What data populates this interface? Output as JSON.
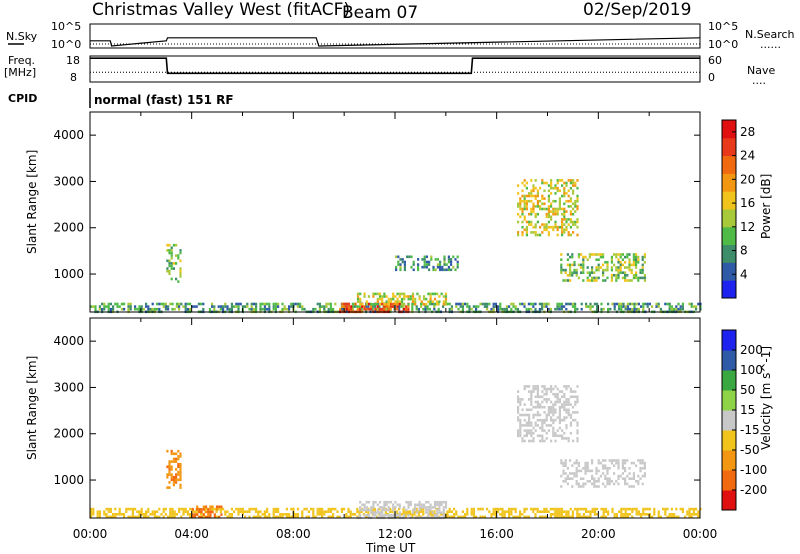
{
  "header": {
    "radar": "Christmas Valley West (fitACF)",
    "beam": "Beam 07",
    "date": "02/Sep/2019"
  },
  "noise_panel": {
    "left_label": "N.Sky",
    "right_label": "N.Search",
    "left_ticks": [
      "10^5",
      "10^0"
    ],
    "right_ticks": [
      "10^5",
      "10^0"
    ],
    "right_legend_dots": "......"
  },
  "freq_panel": {
    "left_label_1": "Freq.",
    "left_label_2": "[MHz]",
    "right_label": "Nave",
    "left_ticks": [
      "18",
      "8"
    ],
    "right_ticks": [
      "60",
      "0"
    ],
    "right_legend_dots": "...."
  },
  "cpid": {
    "label": "CPID",
    "mode": "normal (fast) 151 RF"
  },
  "x_axis": {
    "label": "Time UT",
    "ticks": [
      "00:00",
      "04:00",
      "08:00",
      "12:00",
      "16:00",
      "20:00",
      "00:00"
    ]
  },
  "colors": {
    "power": [
      "#1e22ee",
      "#2e5aa8",
      "#3d8c6a",
      "#4fbb46",
      "#a8c93a",
      "#f0c41c",
      "#f39712",
      "#f26a10",
      "#e83a1a",
      "#e01010"
    ],
    "velocity": [
      "#e01010",
      "#f26a10",
      "#f39712",
      "#f0c41c",
      "#c8c8c8",
      "#8fd448",
      "#3aa840",
      "#2e8a6a",
      "#2e5aa8",
      "#1e22ee"
    ]
  },
  "chart_data": [
    {
      "type": "line",
      "panel": "noise",
      "x_unit": "hours UT",
      "xlim": [
        0,
        24
      ],
      "series": [
        {
          "name": "N.Sky",
          "x": [
            0,
            0.8,
            0.85,
            3.0,
            3.05,
            8.9,
            9.0,
            24
          ],
          "values": [
            1.2,
            1.2,
            0.0,
            1.2,
            1.9,
            1.9,
            0.0,
            1.9
          ]
        }
      ]
    },
    {
      "type": "line",
      "panel": "frequency",
      "x_unit": "hours UT",
      "xlim": [
        0,
        24
      ],
      "ylim_left": [
        8,
        18
      ],
      "ylim_right": [
        0,
        60
      ],
      "series": [
        {
          "name": "Freq.",
          "x": [
            0,
            3.0,
            3.05,
            15.0,
            15.05,
            24
          ],
          "values": [
            17.5,
            17.5,
            11.2,
            11.2,
            17.5,
            17.5
          ]
        },
        {
          "name": "Nave",
          "x": [
            0,
            24
          ],
          "values": [
            22,
            22
          ]
        }
      ]
    },
    {
      "type": "heatmap",
      "panel": "power",
      "xlabel": "",
      "ylabel": "Slant Range [km]",
      "xlim": [
        0,
        24
      ],
      "ylim": [
        180,
        4500
      ],
      "yticks": [
        1000,
        2000,
        3000,
        4000
      ],
      "colorbar": {
        "label": "Power [dB]",
        "ticks": [
          4,
          8,
          12,
          16,
          20,
          24,
          28
        ],
        "range": [
          0,
          30
        ]
      },
      "regions": [
        {
          "t": [
            0.0,
            24.0
          ],
          "range": [
            180,
            380
          ],
          "value": 9
        },
        {
          "t": [
            3.0,
            3.6
          ],
          "range": [
            850,
            1650
          ],
          "value": 12
        },
        {
          "t": [
            9.8,
            12.5
          ],
          "range": [
            200,
            380
          ],
          "value": 24
        },
        {
          "t": [
            10.5,
            14.0
          ],
          "range": [
            350,
            600
          ],
          "value": 14
        },
        {
          "t": [
            16.8,
            19.2
          ],
          "range": [
            1850,
            3050
          ],
          "value": 15
        },
        {
          "t": [
            18.5,
            21.8
          ],
          "range": [
            850,
            1450
          ],
          "value": 12
        },
        {
          "t": [
            12.0,
            14.5
          ],
          "range": [
            1100,
            1400
          ],
          "value": 8
        }
      ]
    },
    {
      "type": "heatmap",
      "panel": "velocity",
      "xlabel": "Time UT",
      "ylabel": "Slant Range [km]",
      "xlim": [
        0,
        24
      ],
      "ylim": [
        180,
        4500
      ],
      "yticks": [
        1000,
        2000,
        3000,
        4000
      ],
      "colorbar": {
        "label": "Velocity [m s^-1]",
        "ticks": [
          -200,
          -100,
          -50,
          -15,
          15,
          50,
          100,
          200
        ],
        "range": [
          -250,
          250
        ]
      },
      "regions": [
        {
          "t": [
            0.0,
            24.0
          ],
          "range": [
            180,
            400
          ],
          "value": -40
        },
        {
          "t": [
            3.0,
            3.6
          ],
          "range": [
            850,
            1650
          ],
          "value": -80
        },
        {
          "t": [
            4.0,
            5.2
          ],
          "range": [
            200,
            450
          ],
          "value": -120
        },
        {
          "t": [
            10.5,
            14.0
          ],
          "range": [
            200,
            550
          ],
          "value": 0
        },
        {
          "t": [
            16.8,
            19.2
          ],
          "range": [
            1850,
            3050
          ],
          "value": 0
        },
        {
          "t": [
            18.5,
            21.8
          ],
          "range": [
            850,
            1450
          ],
          "value": 0
        }
      ]
    }
  ]
}
